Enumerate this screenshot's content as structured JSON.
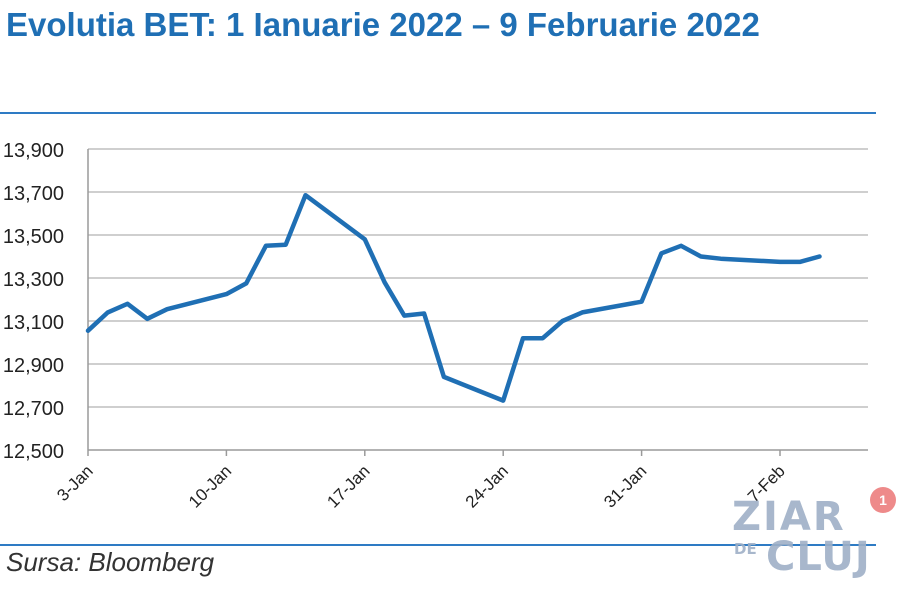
{
  "header": {
    "title": "Evolutia BET: 1 Ianuarie 2022 – 9 Februarie 2022"
  },
  "footer": {
    "source": "Sursa: Bloomberg"
  },
  "watermark": {
    "line1": "ZIAR",
    "line2a": "DE",
    "line2b": "CLUJ",
    "badge": "1"
  },
  "colors": {
    "title": "#1f6fb4",
    "line": "#1f6fb4",
    "rule": "#2e7bc4",
    "grid": "#bfbfbf"
  },
  "chart_data": {
    "type": "line",
    "title": "Evolutia BET: 1 Ianuarie 2022 – 9 Februarie 2022",
    "xlabel": "",
    "ylabel": "",
    "ylim": [
      12500,
      13900
    ],
    "yticks": [
      12500,
      12700,
      12900,
      13100,
      13300,
      13500,
      13700,
      13900
    ],
    "ytick_labels": [
      "12,500",
      "12,700",
      "12,900",
      "13,100",
      "13,300",
      "13,500",
      "13,700",
      "13,900"
    ],
    "xlim": [
      "2022-01-03",
      "2022-02-09"
    ],
    "xticks": [
      "2022-01-03",
      "2022-01-10",
      "2022-01-17",
      "2022-01-24",
      "2022-01-31",
      "2022-02-07"
    ],
    "xtick_labels": [
      "3-Jan",
      "10-Jan",
      "17-Jan",
      "24-Jan",
      "31-Jan",
      "7-Feb"
    ],
    "grid": true,
    "series": [
      {
        "x": [
          "2022-01-03",
          "2022-01-04",
          "2022-01-05",
          "2022-01-06",
          "2022-01-07",
          "2022-01-10",
          "2022-01-11",
          "2022-01-12",
          "2022-01-13",
          "2022-01-14",
          "2022-01-17",
          "2022-01-18",
          "2022-01-19",
          "2022-01-20",
          "2022-01-21",
          "2022-01-24",
          "2022-01-25",
          "2022-01-26",
          "2022-01-27",
          "2022-01-28",
          "2022-01-31",
          "2022-02-01",
          "2022-02-02",
          "2022-02-03",
          "2022-02-04",
          "2022-02-07",
          "2022-02-08",
          "2022-02-09"
        ],
        "values": [
          13055,
          13140,
          13180,
          13110,
          13155,
          13225,
          13275,
          13450,
          13455,
          13685,
          13480,
          13280,
          13125,
          13135,
          12840,
          12730,
          13020,
          13020,
          13100,
          13140,
          13190,
          13415,
          13450,
          13400,
          13390,
          13375,
          13375,
          13400
        ]
      }
    ]
  }
}
